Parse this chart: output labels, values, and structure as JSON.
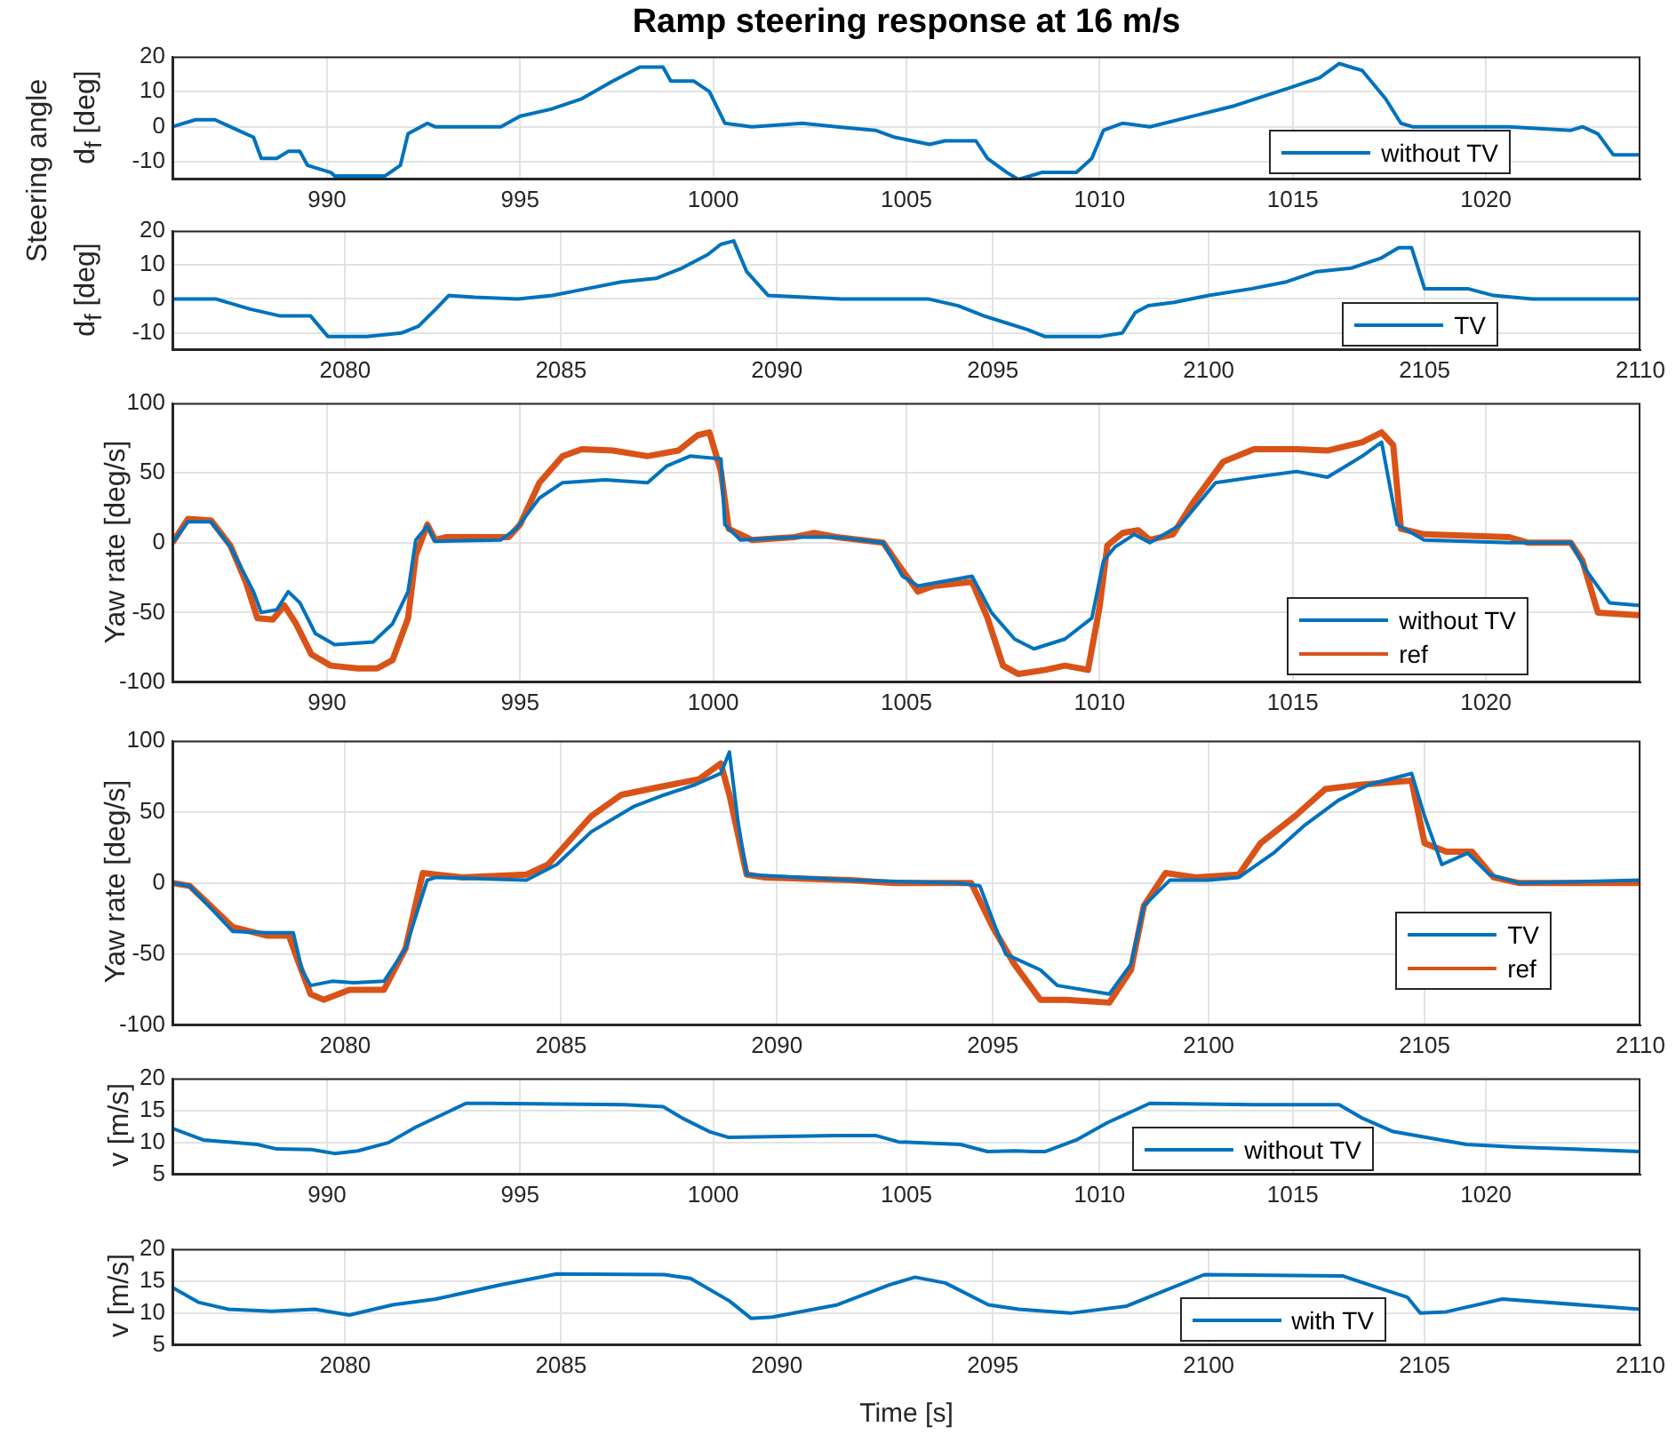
{
  "chart_data": [
    {
      "type": "line",
      "title": "Ramp steering response at 16 m/s",
      "ylabel": "d$_{f}$ [deg]",
      "annotations": [
        "Steering angle"
      ],
      "xlim": [
        986,
        1024
      ],
      "xticks": [
        990,
        995,
        1000,
        1005,
        1010,
        1015,
        1020
      ],
      "ylim": [
        -15,
        20
      ],
      "yticks": [
        -10,
        0,
        10,
        20
      ],
      "grid": true,
      "legend": "bottom right",
      "marker": "none",
      "line_style": "solid",
      "series": [
        {
          "name": "without TV",
          "color": "#0072bd",
          "x": [
            986.0,
            986.6,
            987.1,
            987.7,
            988.1,
            988.3,
            988.7,
            989.0,
            989.3,
            989.5,
            990.1,
            990.2,
            991.5,
            991.9,
            992.1,
            992.6,
            992.8,
            994.5,
            995.0,
            995.8,
            996.6,
            997.4,
            998.1,
            998.7,
            998.9,
            999.5,
            999.9,
            1000.3,
            1001.0,
            1002.3,
            1003.2,
            1004.2,
            1004.7,
            1005.6,
            1006.0,
            1006.8,
            1007.1,
            1007.6,
            1007.9,
            1008.5,
            1009.4,
            1009.8,
            1010.1,
            1010.6,
            1011.3,
            1012.4,
            1013.5,
            1014.9,
            1015.7,
            1016.2,
            1016.8,
            1017.4,
            1017.8,
            1018.1,
            1020.6,
            1022.2,
            1022.5,
            1022.9,
            1023.3,
            1024.0
          ],
          "values": [
            0,
            2,
            2,
            -1,
            -3,
            -9,
            -9,
            -7,
            -7,
            -11,
            -13,
            -14,
            -14,
            -11,
            -2,
            1,
            0,
            0,
            3,
            5,
            8,
            13,
            17,
            17,
            13,
            13,
            10,
            1,
            0,
            1,
            0,
            -1,
            -3,
            -5,
            -4,
            -4,
            -9,
            -13,
            -15,
            -13,
            -13,
            -9,
            -1,
            1,
            0,
            3,
            6,
            11,
            14,
            18,
            16,
            8,
            1,
            0,
            0,
            -1,
            0,
            -2,
            -8,
            -8
          ]
        }
      ]
    },
    {
      "type": "line",
      "ylabel": "d$_{f}$ [deg]",
      "xlim": [
        2076,
        2110
      ],
      "xticks": [
        2080,
        2085,
        2090,
        2095,
        2100,
        2105,
        2110
      ],
      "ylim": [
        -15,
        20
      ],
      "yticks": [
        -10,
        0,
        10,
        20
      ],
      "grid": true,
      "legend": "bottom right",
      "marker": "none",
      "line_style": "solid",
      "series": [
        {
          "name": "TV",
          "color": "#0072bd",
          "x": [
            2076,
            2077,
            2077.8,
            2078.5,
            2079.2,
            2079.6,
            2080.5,
            2081.3,
            2081.7,
            2082.1,
            2082.4,
            2083,
            2084,
            2084.8,
            2085.6,
            2086.4,
            2087.2,
            2087.8,
            2088.4,
            2088.7,
            2089,
            2089.3,
            2089.8,
            2091.5,
            2093.5,
            2094.2,
            2094.8,
            2095.3,
            2095.8,
            2096.2,
            2097.5,
            2098,
            2098.3,
            2098.6,
            2099.2,
            2100,
            2101,
            2101.8,
            2102.5,
            2103.3,
            2104,
            2104.4,
            2104.7,
            2105,
            2106,
            2106.6,
            2107.5,
            2110
          ],
          "values": [
            0,
            0,
            -3,
            -5,
            -5,
            -11,
            -11,
            -10,
            -8,
            -3,
            1,
            0.5,
            0,
            1,
            3,
            5,
            6,
            9,
            13,
            16,
            17,
            8,
            1,
            0,
            0,
            -2,
            -5,
            -7,
            -9,
            -11,
            -11,
            -10,
            -4,
            -2,
            -1,
            1,
            3,
            5,
            8,
            9,
            12,
            15,
            15,
            3,
            3,
            1,
            0,
            0
          ]
        }
      ]
    },
    {
      "type": "line",
      "ylabel": "Yaw rate [deg/s]",
      "xlim": [
        986,
        1024
      ],
      "xticks": [
        990,
        995,
        1000,
        1005,
        1010,
        1015,
        1020
      ],
      "ylim": [
        -100,
        100
      ],
      "yticks": [
        -100,
        -50,
        0,
        50,
        100
      ],
      "grid": true,
      "legend": "bottom right",
      "marker": "none",
      "line_style": "solid",
      "series": [
        {
          "name": "without TV",
          "color": "#0072bd",
          "x": [
            986,
            986.4,
            987.0,
            987.5,
            988.1,
            988.3,
            988.7,
            989.0,
            989.3,
            989.7,
            990.2,
            991.2,
            991.7,
            992.1,
            992.3,
            992.6,
            992.8,
            994.5,
            994.9,
            995.5,
            996.1,
            997.2,
            998.3,
            998.8,
            999.4,
            1000.2,
            1000.3,
            1000.7,
            1002.1,
            1003.2,
            1004.4,
            1004.9,
            1005.3,
            1005.9,
            1006.7,
            1007.2,
            1007.8,
            1008.3,
            1009.1,
            1009.8,
            1010.1,
            1010.4,
            1010.9,
            1011.3,
            1012.1,
            1013.0,
            1014.0,
            1015.1,
            1015.9,
            1016.8,
            1017.3,
            1017.7,
            1018.4,
            1020.6,
            1022.2,
            1022.6,
            1023.2,
            1024.0
          ],
          "values": [
            0,
            15,
            15,
            -3,
            -35,
            -50,
            -48,
            -35,
            -43,
            -65,
            -73,
            -71,
            -58,
            -35,
            2,
            12,
            1,
            2,
            10,
            32,
            43,
            45,
            43,
            55,
            62,
            60,
            13,
            2,
            4,
            4,
            0,
            -24,
            -31,
            -28,
            -24,
            -50,
            -69,
            -76,
            -69,
            -54,
            -13,
            -3,
            6,
            0,
            13,
            43,
            47,
            51,
            47,
            62,
            72,
            13,
            2,
            0,
            0,
            -20,
            -43,
            -45
          ]
        },
        {
          "name": "ref",
          "color": "#d95319",
          "x": [
            986,
            986.4,
            987.0,
            987.5,
            987.9,
            988.2,
            988.6,
            988.9,
            989.2,
            989.6,
            990.1,
            990.8,
            991.3,
            991.7,
            992.1,
            992.3,
            992.6,
            992.8,
            993.1,
            994.7,
            995.0,
            995.5,
            996.1,
            996.6,
            997.4,
            998.3,
            999.1,
            999.6,
            999.9,
            1000.2,
            1000.4,
            1001.0,
            1002.1,
            1002.6,
            1003.2,
            1004.4,
            1004.8,
            1005.3,
            1005.7,
            1006.7,
            1007.1,
            1007.5,
            1007.9,
            1008.6,
            1009.1,
            1009.7,
            1010.0,
            1010.2,
            1010.6,
            1011.0,
            1011.3,
            1011.9,
            1012.4,
            1013.2,
            1014.0,
            1015.1,
            1015.9,
            1016.8,
            1017.3,
            1017.6,
            1017.8,
            1018.4,
            1020.6,
            1021.1,
            1022.2,
            1022.5,
            1022.9,
            1024.0
          ],
          "values": [
            0,
            17,
            16,
            -2,
            -28,
            -54,
            -55,
            -45,
            -58,
            -80,
            -88,
            -90,
            -90,
            -84,
            -54,
            -9,
            13,
            2,
            4,
            4,
            13,
            43,
            62,
            67,
            66,
            62,
            66,
            77,
            79,
            51,
            10,
            2,
            4,
            7,
            4,
            0,
            -16,
            -35,
            -31,
            -28,
            -54,
            -88,
            -94,
            -91,
            -88,
            -91,
            -46,
            -2,
            7,
            9,
            2,
            6,
            28,
            58,
            67,
            67,
            66,
            72,
            79,
            70,
            10,
            6,
            4,
            0,
            0,
            -13,
            -50,
            -52
          ]
        }
      ]
    },
    {
      "type": "line",
      "ylabel": "Yaw rate [deg/s]",
      "xlim": [
        2076,
        2110
      ],
      "xticks": [
        2080,
        2085,
        2090,
        2095,
        2100,
        2105,
        2110
      ],
      "ylim": [
        -100,
        100
      ],
      "yticks": [
        -100,
        -50,
        0,
        50,
        100
      ],
      "grid": true,
      "legend": "bottom right",
      "marker": "none",
      "line_style": "solid",
      "series": [
        {
          "name": "TV",
          "color": "#0072bd",
          "x": [
            2076.0,
            2076.4,
            2077.4,
            2078.2,
            2078.8,
            2079.0,
            2079.2,
            2079.7,
            2080.2,
            2080.9,
            2081.4,
            2081.9,
            2082.1,
            2084.2,
            2084.9,
            2085.7,
            2086.7,
            2087.4,
            2088.1,
            2088.7,
            2088.9,
            2089.1,
            2089.3,
            2091.7,
            2094.2,
            2094.7,
            2095.3,
            2096.1,
            2096.5,
            2097.7,
            2098.2,
            2098.5,
            2099.1,
            2100.0,
            2100.7,
            2101.5,
            2102.2,
            2103.0,
            2103.7,
            2104.7,
            2105.0,
            2105.4,
            2106.0,
            2106.5,
            2107.2,
            2110.0
          ],
          "values": [
            0,
            -2,
            -34,
            -35,
            -35,
            -61,
            -72,
            -69,
            -70,
            -69,
            -46,
            2,
            4,
            2,
            13,
            36,
            54,
            62,
            69,
            77,
            92,
            43,
            6,
            2,
            0,
            -2,
            -50,
            -61,
            -72,
            -78,
            -57,
            -16,
            2,
            2,
            4,
            21,
            40,
            58,
            69,
            77,
            47,
            13,
            21,
            6,
            0,
            2
          ]
        },
        {
          "name": "ref",
          "color": "#d95319",
          "x": [
            2076.0,
            2076.4,
            2077.4,
            2078.2,
            2078.7,
            2078.9,
            2079.2,
            2079.5,
            2080.1,
            2080.9,
            2081.4,
            2081.8,
            2082.1,
            2082.7,
            2084.2,
            2084.7,
            2085.7,
            2086.4,
            2087.2,
            2088.2,
            2088.7,
            2088.9,
            2089.3,
            2089.7,
            2091.7,
            2092.7,
            2094.5,
            2095.0,
            2095.5,
            2096.1,
            2096.7,
            2097.7,
            2098.2,
            2098.5,
            2099.0,
            2099.7,
            2100.7,
            2101.2,
            2102.0,
            2102.7,
            2103.5,
            2104.7,
            2105.0,
            2105.5,
            2106.1,
            2106.6,
            2107.2,
            2108.7,
            2110.0
          ],
          "values": [
            0,
            -2,
            -31,
            -37,
            -37,
            -54,
            -78,
            -82,
            -75,
            -75,
            -46,
            7,
            6,
            4,
            6,
            13,
            47,
            62,
            67,
            73,
            84,
            62,
            6,
            4,
            2,
            0,
            0,
            -31,
            -57,
            -82,
            -82,
            -84,
            -61,
            -16,
            7,
            4,
            6,
            28,
            47,
            66,
            69,
            72,
            28,
            22,
            22,
            4,
            0,
            0,
            0
          ]
        }
      ]
    },
    {
      "type": "line",
      "ylabel": "v [m/s]",
      "xlim": [
        986,
        1024
      ],
      "xticks": [
        990,
        995,
        1000,
        1005,
        1010,
        1015,
        1020
      ],
      "ylim": [
        5,
        20
      ],
      "yticks": [
        5,
        10,
        15,
        20
      ],
      "grid": true,
      "legend": "bottom right",
      "marker": "none",
      "line_style": "solid",
      "series": [
        {
          "name": "without TV",
          "color": "#0072bd",
          "x": [
            986.0,
            986.8,
            988.2,
            988.7,
            989.6,
            990.2,
            990.8,
            991.6,
            992.3,
            993.6,
            994.2,
            997.7,
            998.7,
            999.2,
            999.9,
            1000.4,
            1003.2,
            1004.2,
            1004.8,
            1006.4,
            1007.1,
            1007.8,
            1008.3,
            1008.6,
            1009.4,
            1010.2,
            1011.3,
            1014.0,
            1016.2,
            1016.8,
            1017.6,
            1019.5,
            1020.8,
            1024.0
          ],
          "values": [
            12.2,
            10.4,
            9.7,
            9.0,
            8.9,
            8.3,
            8.7,
            10,
            12.4,
            16.1,
            16.1,
            15.9,
            15.6,
            13.8,
            11.7,
            10.8,
            11.1,
            11.1,
            10.1,
            9.7,
            8.6,
            8.7,
            8.6,
            8.6,
            10.4,
            13.1,
            16.1,
            15.9,
            15.9,
            13.8,
            11.7,
            9.7,
            9.3,
            8.6
          ]
        }
      ]
    },
    {
      "type": "line",
      "xlabel": "Time [s]",
      "ylabel": "v [m/s]",
      "xlim": [
        2076,
        2110
      ],
      "xticks": [
        2080,
        2085,
        2090,
        2095,
        2100,
        2105,
        2110
      ],
      "ylim": [
        5,
        20
      ],
      "yticks": [
        5,
        10,
        15,
        20
      ],
      "grid": true,
      "legend": "bottom right",
      "marker": "none",
      "line_style": "solid",
      "series": [
        {
          "name": "with TV",
          "color": "#0072bd",
          "x": [
            2076.0,
            2076.6,
            2077.3,
            2078.3,
            2079.3,
            2080.1,
            2081.1,
            2082.1,
            2083.6,
            2084.9,
            2087.4,
            2088.0,
            2088.9,
            2089.4,
            2089.9,
            2091.4,
            2092.6,
            2093.2,
            2093.9,
            2094.9,
            2095.6,
            2096.8,
            2098.1,
            2099.9,
            2103.1,
            2103.9,
            2104.6,
            2104.9,
            2105.5,
            2106.8,
            2110.0
          ],
          "values": [
            14.0,
            11.7,
            10.6,
            10.3,
            10.6,
            9.7,
            11.3,
            12.2,
            14.4,
            16.1,
            16.0,
            15.4,
            11.9,
            9.2,
            9.4,
            11.3,
            14.4,
            15.6,
            14.7,
            11.3,
            10.6,
            10.0,
            11.1,
            16.0,
            15.8,
            14.0,
            12.5,
            10.0,
            10.2,
            12.2,
            10.6
          ]
        }
      ]
    }
  ]
}
